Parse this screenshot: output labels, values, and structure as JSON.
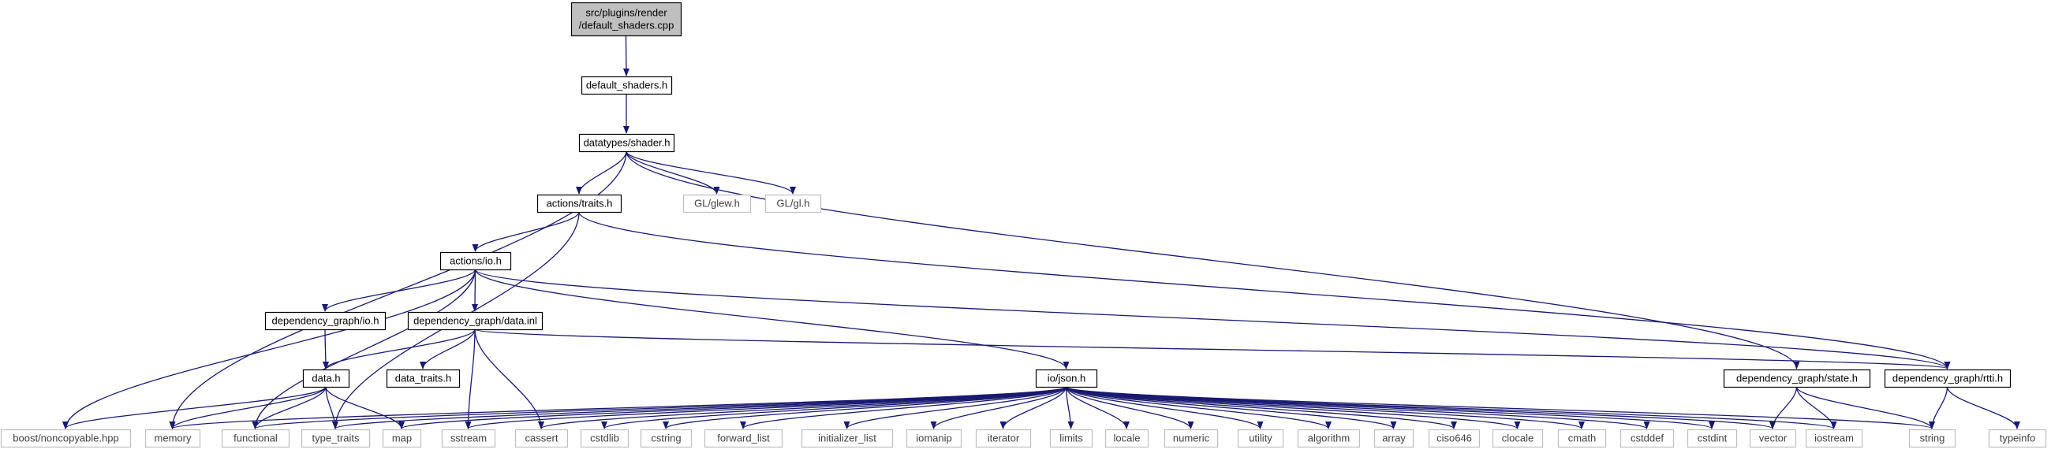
{
  "colors": {
    "edge": "#191970",
    "node_border": "#000000",
    "external_border": "#bfbfbf",
    "external_text": "#404040",
    "root_fill": "#bfbfbf",
    "fill": "#ffffff"
  },
  "graph": {
    "nodes": [
      {
        "id": "root",
        "lines": [
          "src/plugins/render",
          "/default_shaders.cpp"
        ],
        "kind": "root"
      },
      {
        "id": "default_shaders",
        "lines": [
          "default_shaders.h"
        ],
        "kind": "internal"
      },
      {
        "id": "shader",
        "lines": [
          "datatypes/shader.h"
        ],
        "kind": "internal"
      },
      {
        "id": "traits",
        "lines": [
          "actions/traits.h"
        ],
        "kind": "internal"
      },
      {
        "id": "glew",
        "lines": [
          "GL/glew.h"
        ],
        "kind": "external"
      },
      {
        "id": "gl",
        "lines": [
          "GL/gl.h"
        ],
        "kind": "external"
      },
      {
        "id": "io",
        "lines": [
          "actions/io.h"
        ],
        "kind": "internal"
      },
      {
        "id": "dg_io",
        "lines": [
          "dependency_graph/io.h"
        ],
        "kind": "internal"
      },
      {
        "id": "dg_data_inl",
        "lines": [
          "dependency_graph/data.inl"
        ],
        "kind": "internal"
      },
      {
        "id": "data_h",
        "lines": [
          "data.h"
        ],
        "kind": "internal"
      },
      {
        "id": "data_traits",
        "lines": [
          "data_traits.h"
        ],
        "kind": "internal"
      },
      {
        "id": "json",
        "lines": [
          "io/json.h"
        ],
        "kind": "internal"
      },
      {
        "id": "state",
        "lines": [
          "dependency_graph/state.h"
        ],
        "kind": "internal"
      },
      {
        "id": "rtti",
        "lines": [
          "dependency_graph/rtti.h"
        ],
        "kind": "internal"
      },
      {
        "id": "noncopyable",
        "lines": [
          "boost/noncopyable.hpp"
        ],
        "kind": "external"
      },
      {
        "id": "memory",
        "lines": [
          "memory"
        ],
        "kind": "external"
      },
      {
        "id": "functional",
        "lines": [
          "functional"
        ],
        "kind": "external"
      },
      {
        "id": "type_traits",
        "lines": [
          "type_traits"
        ],
        "kind": "external"
      },
      {
        "id": "map",
        "lines": [
          "map"
        ],
        "kind": "external"
      },
      {
        "id": "sstream",
        "lines": [
          "sstream"
        ],
        "kind": "external"
      },
      {
        "id": "cassert",
        "lines": [
          "cassert"
        ],
        "kind": "external"
      },
      {
        "id": "cstdlib",
        "lines": [
          "cstdlib"
        ],
        "kind": "external"
      },
      {
        "id": "cstring",
        "lines": [
          "cstring"
        ],
        "kind": "external"
      },
      {
        "id": "forward_list",
        "lines": [
          "forward_list"
        ],
        "kind": "external"
      },
      {
        "id": "initializer_list",
        "lines": [
          "initializer_list"
        ],
        "kind": "external"
      },
      {
        "id": "iomanip",
        "lines": [
          "iomanip"
        ],
        "kind": "external"
      },
      {
        "id": "iterator",
        "lines": [
          "iterator"
        ],
        "kind": "external"
      },
      {
        "id": "limits",
        "lines": [
          "limits"
        ],
        "kind": "external"
      },
      {
        "id": "locale",
        "lines": [
          "locale"
        ],
        "kind": "external"
      },
      {
        "id": "numeric",
        "lines": [
          "numeric"
        ],
        "kind": "external"
      },
      {
        "id": "utility",
        "lines": [
          "utility"
        ],
        "kind": "external"
      },
      {
        "id": "algorithm",
        "lines": [
          "algorithm"
        ],
        "kind": "external"
      },
      {
        "id": "array",
        "lines": [
          "array"
        ],
        "kind": "external"
      },
      {
        "id": "ciso646",
        "lines": [
          "ciso646"
        ],
        "kind": "external"
      },
      {
        "id": "clocale",
        "lines": [
          "clocale"
        ],
        "kind": "external"
      },
      {
        "id": "cmath",
        "lines": [
          "cmath"
        ],
        "kind": "external"
      },
      {
        "id": "cstddef",
        "lines": [
          "cstddef"
        ],
        "kind": "external"
      },
      {
        "id": "cstdint",
        "lines": [
          "cstdint"
        ],
        "kind": "external"
      },
      {
        "id": "vector",
        "lines": [
          "vector"
        ],
        "kind": "external"
      },
      {
        "id": "iostream",
        "lines": [
          "iostream"
        ],
        "kind": "external"
      },
      {
        "id": "string",
        "lines": [
          "string"
        ],
        "kind": "external"
      },
      {
        "id": "typeinfo",
        "lines": [
          "typeinfo"
        ],
        "kind": "external"
      }
    ],
    "edges": [
      [
        "root",
        "default_shaders"
      ],
      [
        "default_shaders",
        "shader"
      ],
      [
        "shader",
        "memory"
      ],
      [
        "shader",
        "traits"
      ],
      [
        "shader",
        "glew"
      ],
      [
        "shader",
        "gl"
      ],
      [
        "shader",
        "state"
      ],
      [
        "traits",
        "io"
      ],
      [
        "traits",
        "type_traits"
      ],
      [
        "traits",
        "rtti"
      ],
      [
        "io",
        "dg_io"
      ],
      [
        "io",
        "dg_data_inl"
      ],
      [
        "io",
        "json"
      ],
      [
        "io",
        "noncopyable"
      ],
      [
        "io",
        "functional"
      ],
      [
        "io",
        "rtti"
      ],
      [
        "dg_io",
        "data_h"
      ],
      [
        "dg_data_inl",
        "data_h"
      ],
      [
        "dg_data_inl",
        "data_traits"
      ],
      [
        "dg_data_inl",
        "sstream"
      ],
      [
        "dg_data_inl",
        "cassert"
      ],
      [
        "dg_data_inl",
        "rtti"
      ],
      [
        "data_h",
        "noncopyable"
      ],
      [
        "data_h",
        "memory"
      ],
      [
        "data_h",
        "functional"
      ],
      [
        "data_h",
        "type_traits"
      ],
      [
        "data_h",
        "map"
      ],
      [
        "json",
        "memory"
      ],
      [
        "json",
        "functional"
      ],
      [
        "json",
        "type_traits"
      ],
      [
        "json",
        "map"
      ],
      [
        "json",
        "sstream"
      ],
      [
        "json",
        "cassert"
      ],
      [
        "json",
        "cstdlib"
      ],
      [
        "json",
        "cstring"
      ],
      [
        "json",
        "forward_list"
      ],
      [
        "json",
        "initializer_list"
      ],
      [
        "json",
        "iomanip"
      ],
      [
        "json",
        "iterator"
      ],
      [
        "json",
        "limits"
      ],
      [
        "json",
        "locale"
      ],
      [
        "json",
        "numeric"
      ],
      [
        "json",
        "utility"
      ],
      [
        "json",
        "algorithm"
      ],
      [
        "json",
        "array"
      ],
      [
        "json",
        "ciso646"
      ],
      [
        "json",
        "clocale"
      ],
      [
        "json",
        "cmath"
      ],
      [
        "json",
        "cstddef"
      ],
      [
        "json",
        "cstdint"
      ],
      [
        "json",
        "vector"
      ],
      [
        "json",
        "iostream"
      ],
      [
        "json",
        "string"
      ],
      [
        "state",
        "vector"
      ],
      [
        "state",
        "iostream"
      ],
      [
        "state",
        "string"
      ],
      [
        "rtti",
        "string"
      ],
      [
        "rtti",
        "typeinfo"
      ]
    ]
  }
}
